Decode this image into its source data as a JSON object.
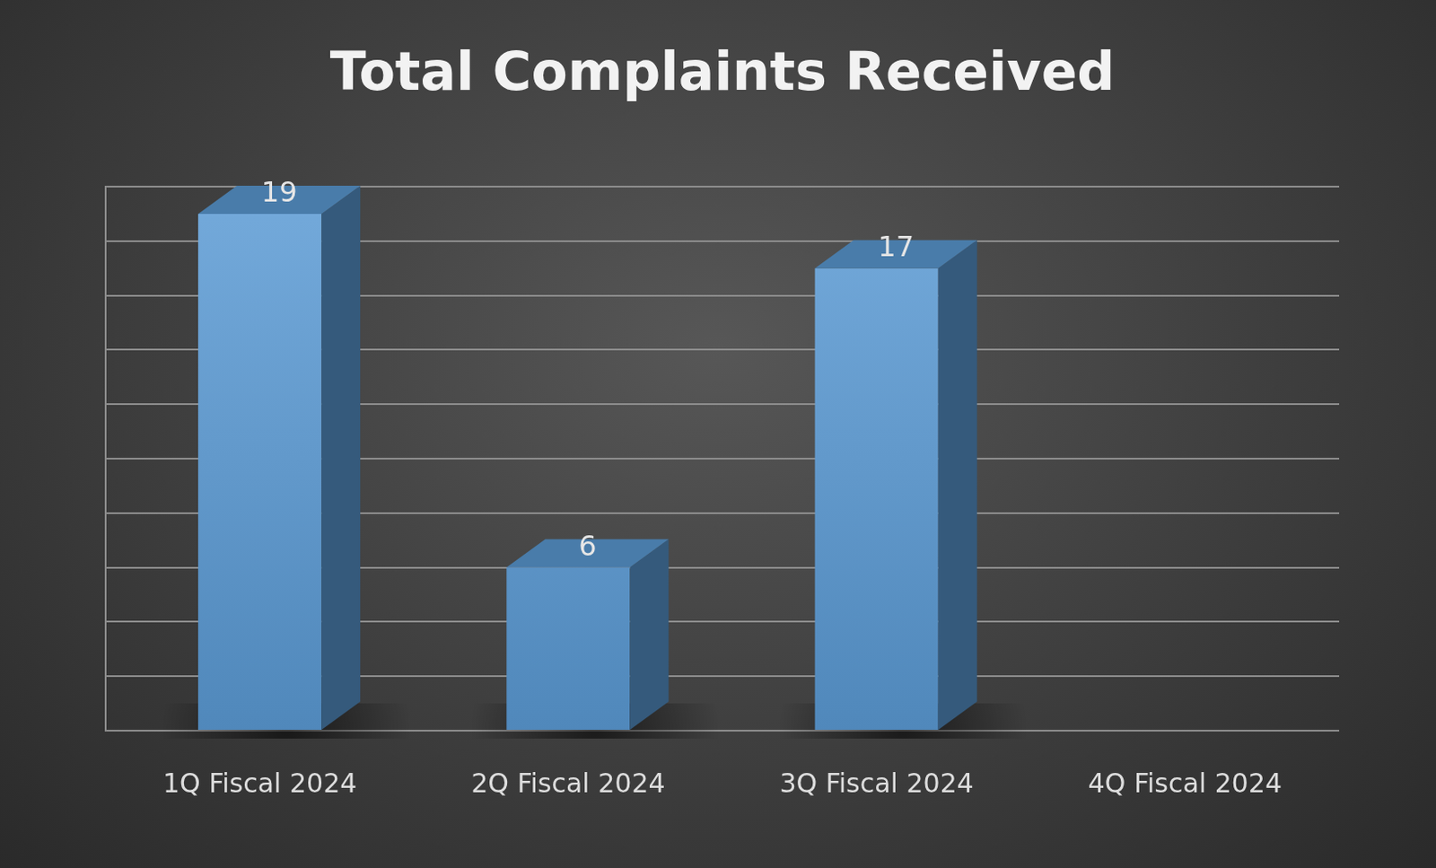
{
  "chart_data": {
    "type": "bar",
    "title": "Total Complaints Received",
    "categories": [
      "1Q Fiscal 2024",
      "2Q Fiscal 2024",
      "3Q Fiscal 2024",
      "4Q Fiscal 2024"
    ],
    "values": [
      19,
      6,
      17,
      null
    ],
    "color": "#5b9bd5",
    "ylim": [
      0,
      20
    ],
    "yticks": [
      0,
      2,
      4,
      6,
      8,
      10,
      12,
      14,
      16,
      18,
      20
    ],
    "grid": true,
    "data_labels": true,
    "tick_labels": "x"
  }
}
